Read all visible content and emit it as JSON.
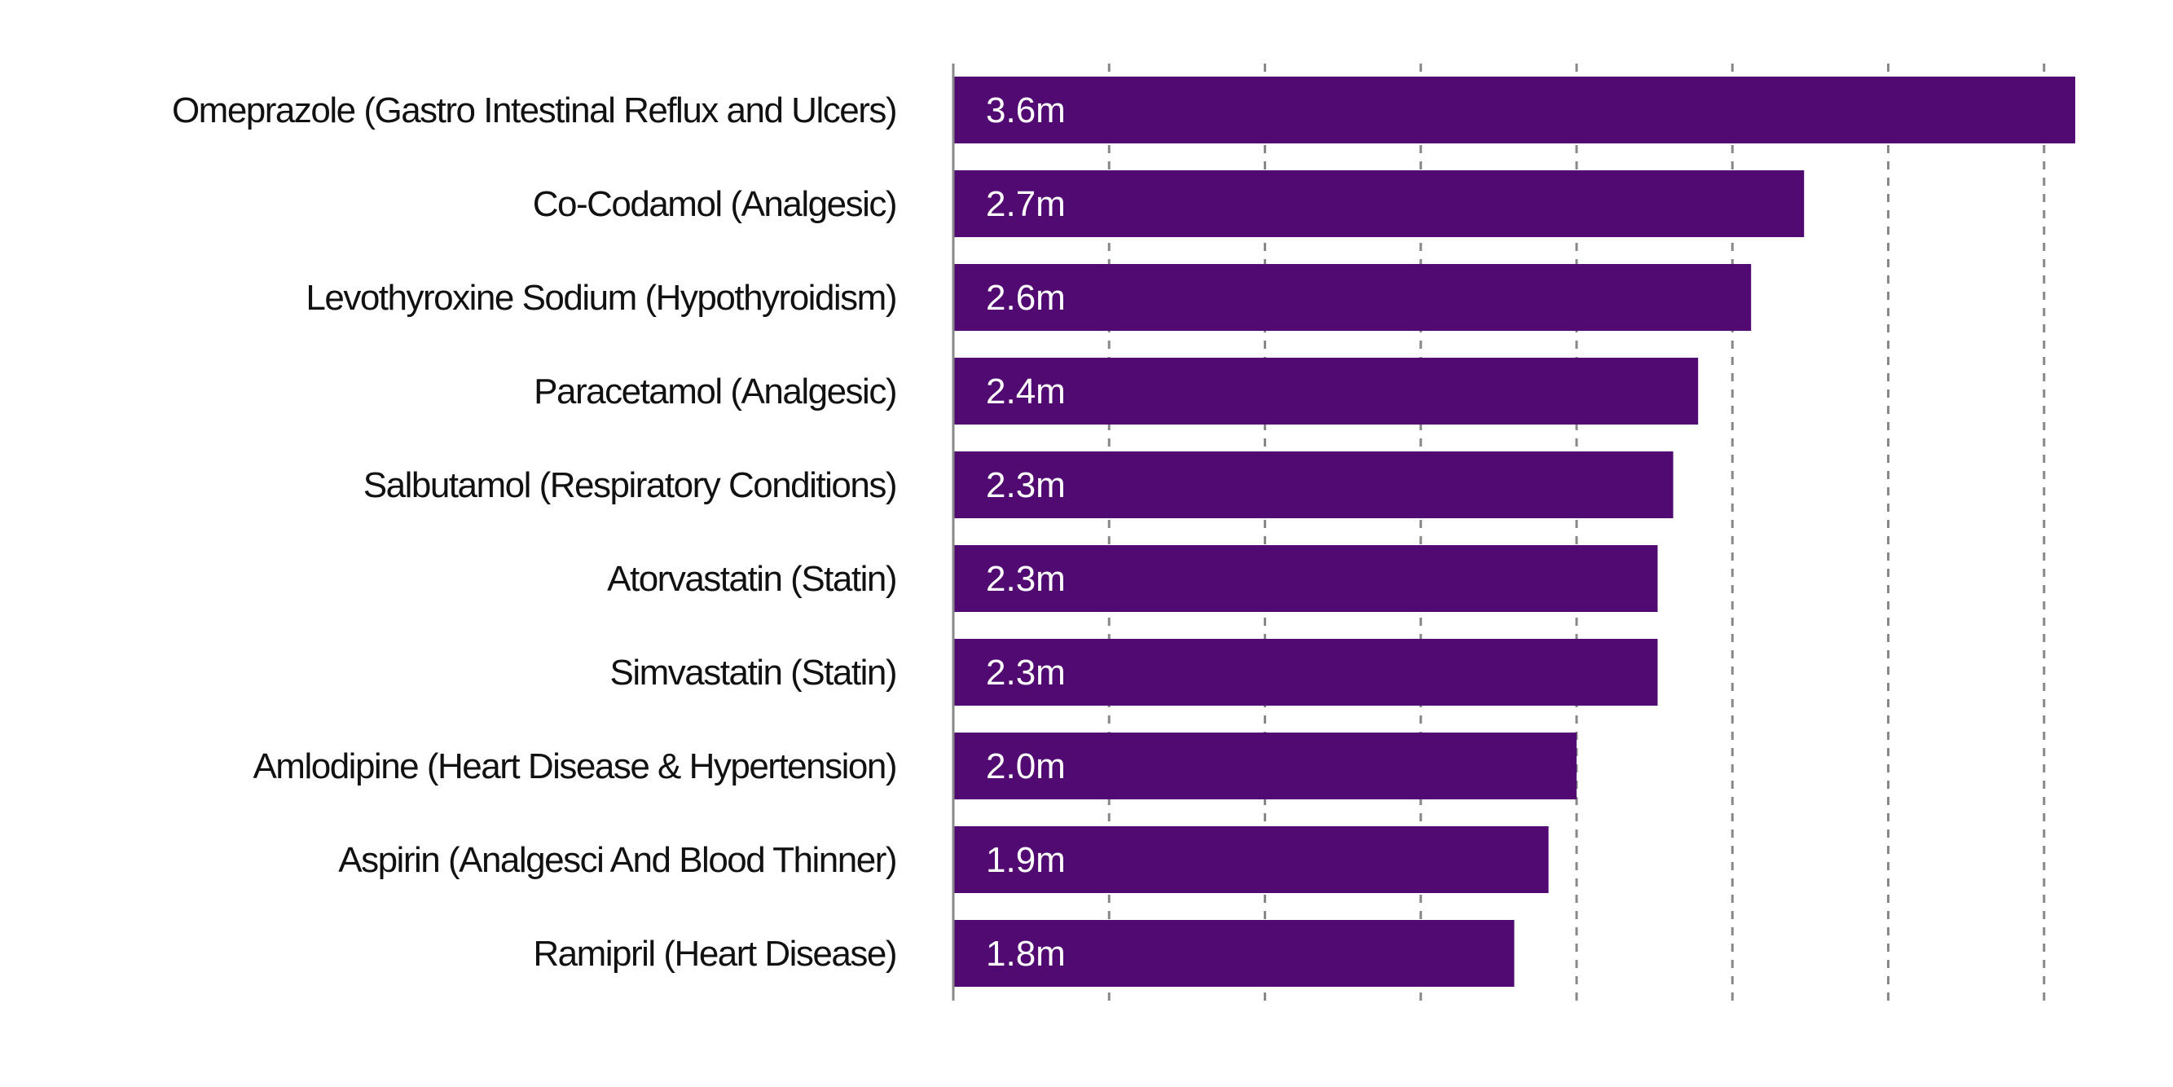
{
  "chart_data": {
    "type": "bar",
    "orientation": "horizontal",
    "categories": [
      "Omeprazole (Gastro Intestinal Reflux and Ulcers)",
      "Co-Codamol (Analgesic)",
      "Levothyroxine Sodium (Hypothyroidism)",
      "Paracetamol (Analgesic)",
      "Salbutamol (Respiratory Conditions)",
      "Atorvastatin (Statin)",
      "Simvastatin (Statin)",
      "Amlodipine (Heart Disease & Hypertension)",
      "Aspirin (Analgesci And Blood Thinner)",
      "Ramipril (Heart Disease)"
    ],
    "values": [
      3.6,
      2.73,
      2.56,
      2.39,
      2.31,
      2.26,
      2.26,
      2.0,
      1.91,
      1.8
    ],
    "data_labels": [
      "3.6m",
      "2.7m",
      "2.6m",
      "2.4m",
      "2.3m",
      "2.3m",
      "2.3m",
      "2.0m",
      "1.9m",
      "1.8m"
    ],
    "xlim": [
      0,
      3.6
    ],
    "grid_ticks": [
      0.5,
      1.0,
      1.5,
      2.0,
      2.5,
      3.0,
      3.5
    ],
    "grid": true,
    "bar_color": "#520a73",
    "gridline_color": "#888888",
    "title": "",
    "xlabel": "",
    "ylabel": ""
  }
}
